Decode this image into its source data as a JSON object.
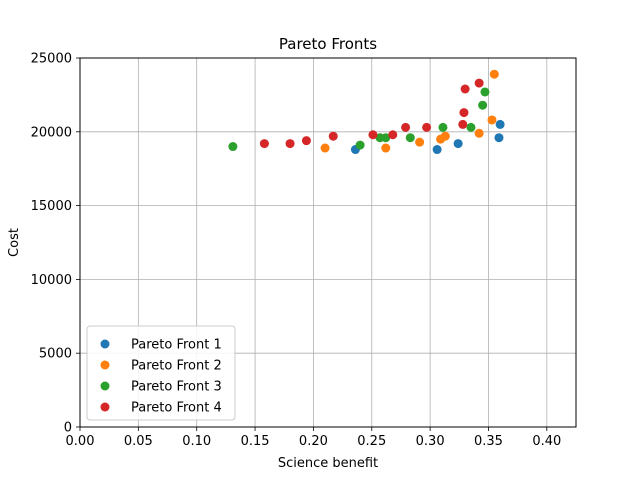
{
  "chart_data": {
    "type": "scatter",
    "title": "Pareto Fronts",
    "xlabel": "Science benefit",
    "ylabel": "Cost",
    "xlim": [
      0.0,
      0.425
    ],
    "ylim": [
      0,
      25000
    ],
    "xticks": [
      0.0,
      0.05,
      0.1,
      0.15,
      0.2,
      0.25,
      0.3,
      0.35,
      0.4
    ],
    "xtick_labels": [
      "0.00",
      "0.05",
      "0.10",
      "0.15",
      "0.20",
      "0.25",
      "0.30",
      "0.35",
      "0.40"
    ],
    "yticks": [
      0,
      5000,
      10000,
      15000,
      20000,
      25000
    ],
    "ytick_labels": [
      "0",
      "5000",
      "10000",
      "15000",
      "20000",
      "25000"
    ],
    "grid": true,
    "legend_position": "lower-left",
    "series": [
      {
        "name": "Pareto Front 1",
        "color": "#1f77b4",
        "points": [
          [
            0.236,
            18800
          ],
          [
            0.306,
            18800
          ],
          [
            0.324,
            19200
          ],
          [
            0.359,
            19600
          ],
          [
            0.36,
            20500
          ]
        ]
      },
      {
        "name": "Pareto Front 2",
        "color": "#ff7f0e",
        "points": [
          [
            0.21,
            18900
          ],
          [
            0.262,
            18900
          ],
          [
            0.291,
            19300
          ],
          [
            0.309,
            19500
          ],
          [
            0.313,
            19700
          ],
          [
            0.342,
            19900
          ],
          [
            0.353,
            20800
          ],
          [
            0.355,
            23900
          ]
        ]
      },
      {
        "name": "Pareto Front 3",
        "color": "#2ca02c",
        "points": [
          [
            0.131,
            19000
          ],
          [
            0.24,
            19100
          ],
          [
            0.257,
            19600
          ],
          [
            0.262,
            19600
          ],
          [
            0.283,
            19600
          ],
          [
            0.311,
            20300
          ],
          [
            0.335,
            20300
          ],
          [
            0.345,
            21800
          ],
          [
            0.347,
            22700
          ]
        ]
      },
      {
        "name": "Pareto Front 4",
        "color": "#d62728",
        "points": [
          [
            0.158,
            19200
          ],
          [
            0.18,
            19200
          ],
          [
            0.194,
            19400
          ],
          [
            0.217,
            19700
          ],
          [
            0.251,
            19800
          ],
          [
            0.268,
            19800
          ],
          [
            0.279,
            20300
          ],
          [
            0.297,
            20300
          ],
          [
            0.328,
            20500
          ],
          [
            0.329,
            21300
          ],
          [
            0.33,
            22900
          ],
          [
            0.342,
            23300
          ]
        ]
      }
    ]
  }
}
